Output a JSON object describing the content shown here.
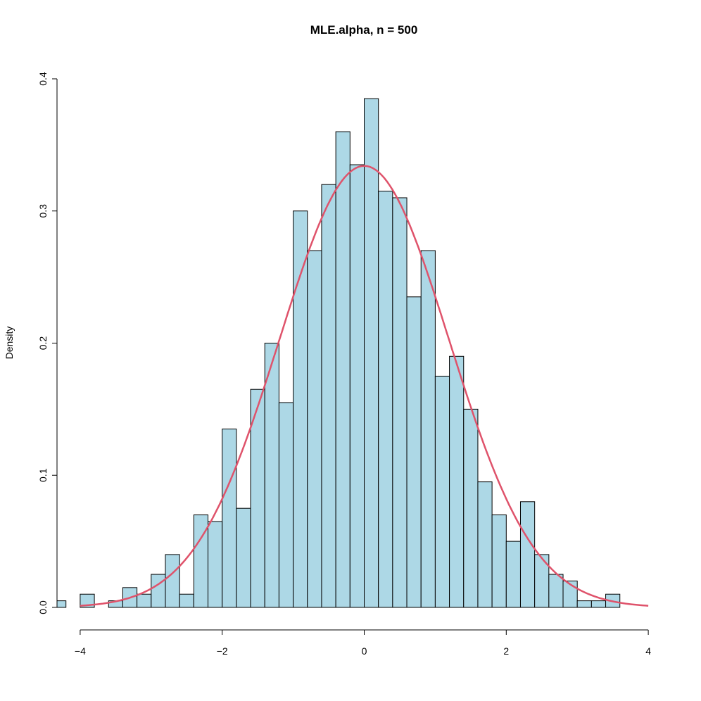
{
  "chart_data": {
    "type": "bar",
    "title": "MLE.alpha, n = 500",
    "xlabel": "",
    "ylabel": "Density",
    "xlim": [
      -4,
      4
    ],
    "ylim": [
      0,
      0.4
    ],
    "x_ticks": [
      "−4",
      "−2",
      "0",
      "2",
      "4"
    ],
    "x_tick_values": [
      -4,
      -2,
      0,
      2,
      4
    ],
    "y_ticks": [
      "0.0",
      "0.1",
      "0.2",
      "0.3",
      "0.4"
    ],
    "y_tick_values": [
      0,
      0.1,
      0.2,
      0.3,
      0.4
    ],
    "bin_width": 0.2,
    "bin_starts": [
      -4.4,
      -4.2,
      -4.0,
      -3.8,
      -3.6,
      -3.4,
      -3.2,
      -3.0,
      -2.8,
      -2.6,
      -2.4,
      -2.2,
      -2.0,
      -1.8,
      -1.6,
      -1.4,
      -1.2,
      -1.0,
      -0.8,
      -0.6,
      -0.4,
      -0.2,
      0.0,
      0.2,
      0.4,
      0.6,
      0.8,
      1.0,
      1.2,
      1.4,
      1.6,
      1.8,
      2.0,
      2.2,
      2.4,
      2.6,
      2.8,
      3.0,
      3.2,
      3.4
    ],
    "densities": [
      0.005,
      0,
      0.01,
      0,
      0.005,
      0.015,
      0.01,
      0.025,
      0.04,
      0.01,
      0.07,
      0.065,
      0.135,
      0.075,
      0.165,
      0.2,
      0.155,
      0.3,
      0.27,
      0.32,
      0.36,
      0.335,
      0.385,
      0.315,
      0.31,
      0.235,
      0.27,
      0.175,
      0.19,
      0.15,
      0.095,
      0.07,
      0.05,
      0.08,
      0.04,
      0.025,
      0.02,
      0.005,
      0.005,
      0.01
    ],
    "bar_color": "#ADD8E6",
    "curve": {
      "type": "normal-density",
      "mean": 0,
      "sd": 1.194,
      "range": [
        -4,
        4
      ],
      "color": "#DF536B"
    },
    "grid": false,
    "legend": "none"
  }
}
